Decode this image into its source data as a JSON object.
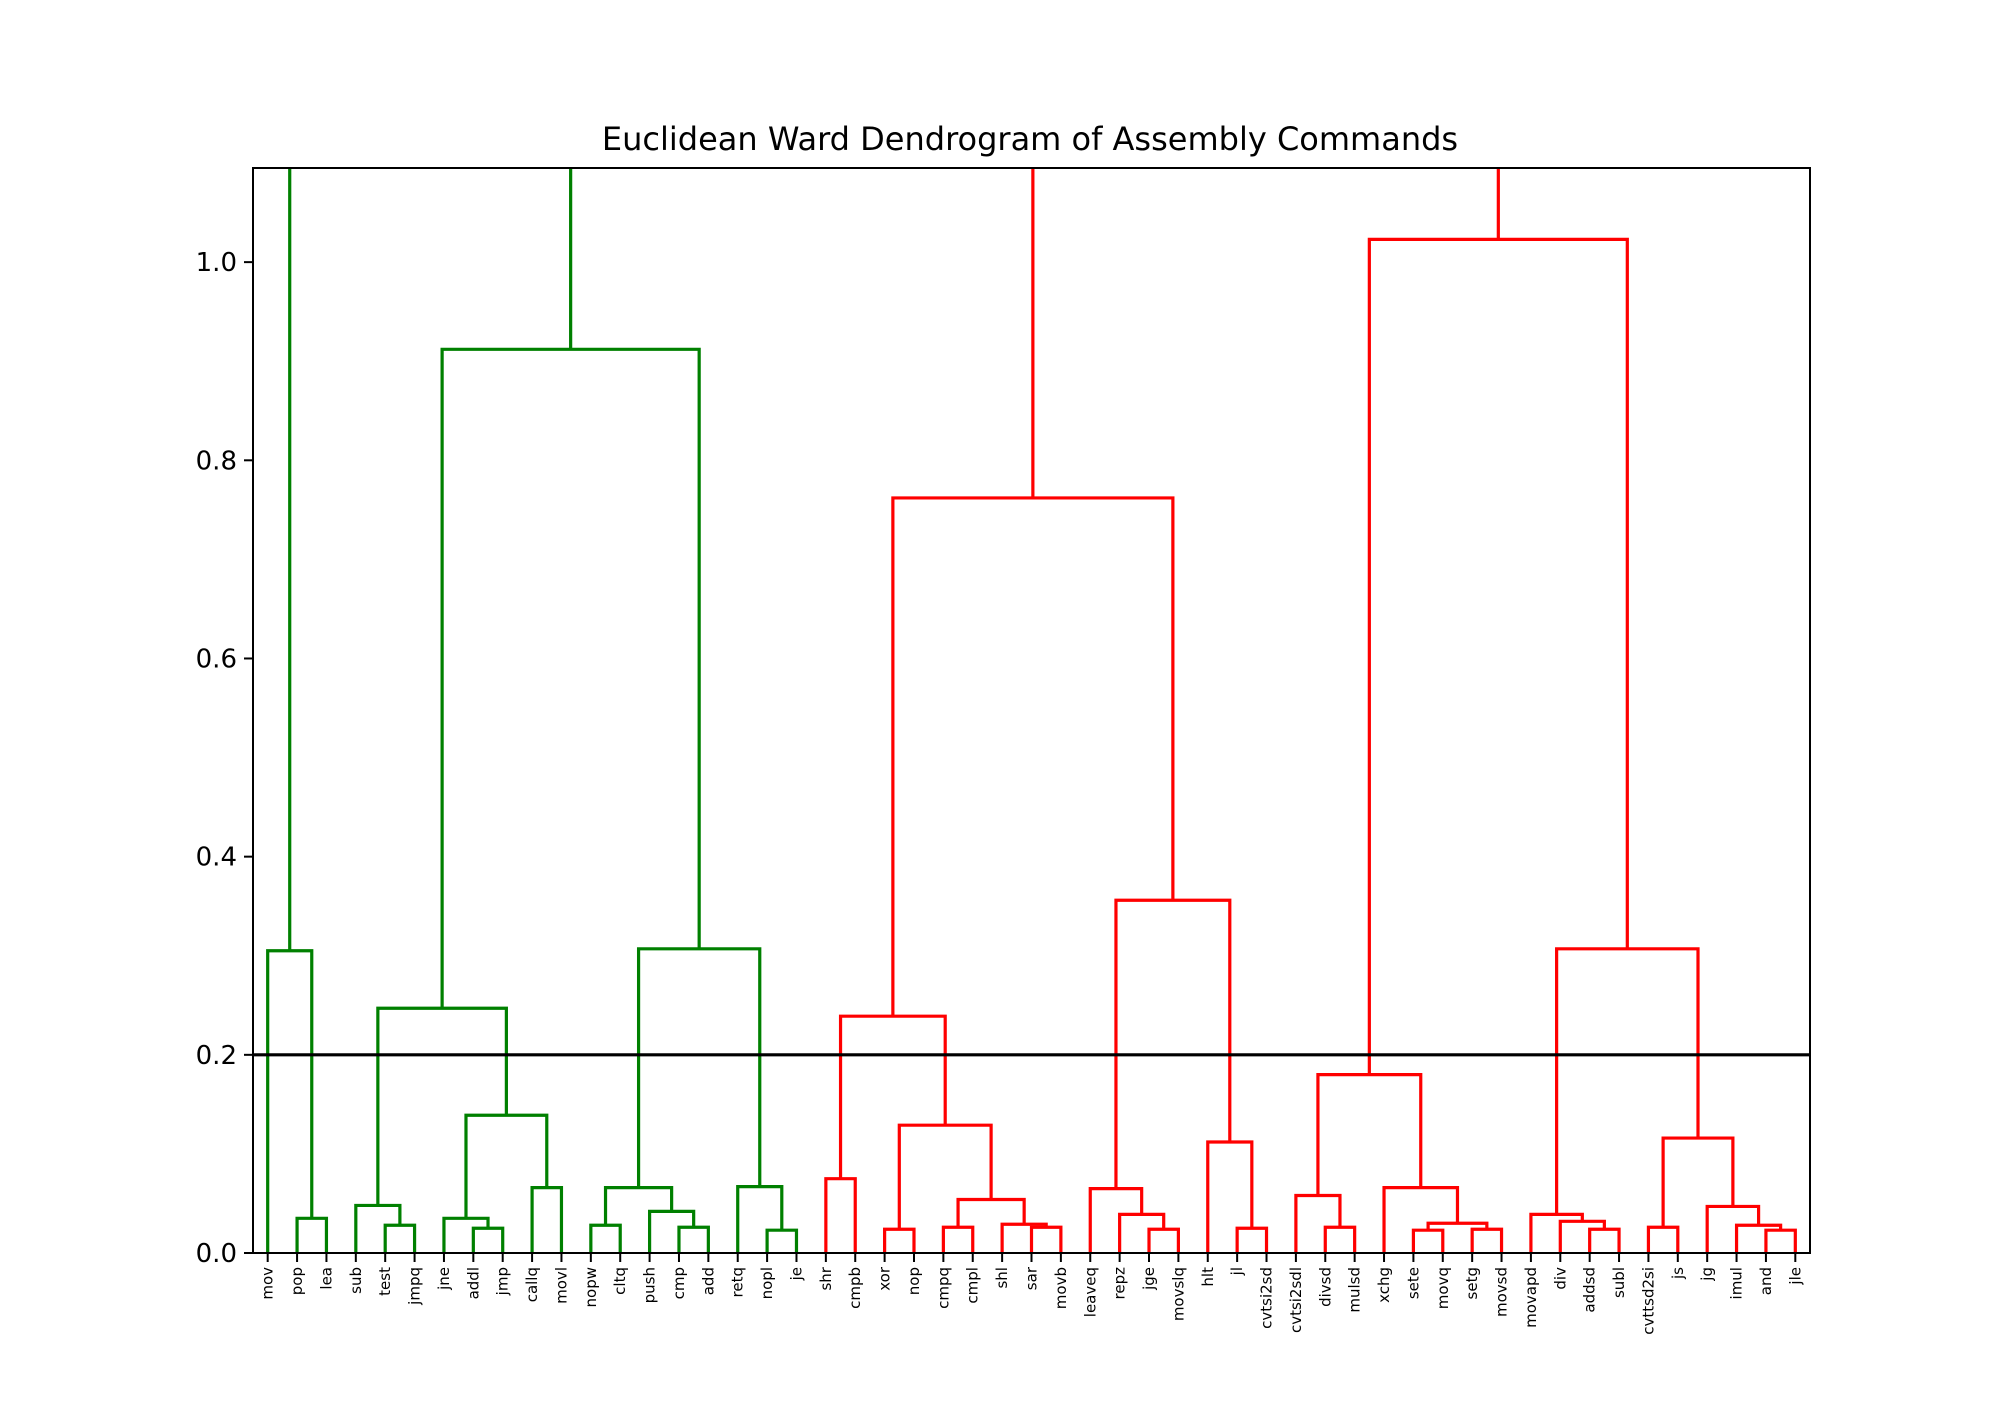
{
  "chart_data": {
    "type": "dendrogram",
    "title": "Euclidean Ward Dendrogram of Assembly Commands",
    "xlabel": "",
    "ylabel": "",
    "ylim": [
      0,
      1.095
    ],
    "yticks": [
      0.0,
      0.2,
      0.4,
      0.6,
      0.8,
      1.0
    ],
    "ytick_labels": [
      "0.0",
      "0.2",
      "0.4",
      "0.6",
      "0.8",
      "1.0"
    ],
    "grid": false,
    "threshold": 0.2,
    "colors": {
      "cluster_a": "#008000",
      "cluster_b": "#ff0000",
      "threshold": "#000000",
      "axes": "#000000"
    },
    "leaves": [
      "mov",
      "pop",
      "lea",
      "sub",
      "test",
      "jmpq",
      "jne",
      "addl",
      "jmp",
      "callq",
      "movl",
      "nopw",
      "cltq",
      "push",
      "cmp",
      "add",
      "retq",
      "nopl",
      "je",
      "shr",
      "cmpb",
      "xor",
      "nop",
      "cmpq",
      "cmpl",
      "shl",
      "sar",
      "movb",
      "leaveq",
      "repz",
      "jge",
      "movslq",
      "hlt",
      "jl",
      "cvtsi2sd",
      "cvtsi2sdl",
      "divsd",
      "mulsd",
      "xchg",
      "sete",
      "movq",
      "setg",
      "movsd",
      "movapd",
      "div",
      "addsd",
      "subl",
      "cvttsd2si",
      "js",
      "jg",
      "imul",
      "and",
      "jle"
    ],
    "links": [
      {
        "a": "pop",
        "b": "lea",
        "h": 0.035,
        "color": "cluster_a"
      },
      {
        "a": "mov",
        "b": 0,
        "h": 0.305,
        "color": "cluster_a"
      },
      {
        "a": "test",
        "b": "jmpq",
        "h": 0.028,
        "color": "cluster_a"
      },
      {
        "a": "sub",
        "b": 2,
        "h": 0.048,
        "color": "cluster_a"
      },
      {
        "a": "addl",
        "b": "jmp",
        "h": 0.025,
        "color": "cluster_a"
      },
      {
        "a": "jne",
        "b": 4,
        "h": 0.035,
        "color": "cluster_a"
      },
      {
        "a": "callq",
        "b": "movl",
        "h": 0.066,
        "color": "cluster_a"
      },
      {
        "a": 5,
        "b": 6,
        "h": 0.139,
        "color": "cluster_a"
      },
      {
        "a": 3,
        "b": 7,
        "h": 0.247,
        "color": "cluster_a"
      },
      {
        "a": "nopw",
        "b": "cltq",
        "h": 0.028,
        "color": "cluster_a"
      },
      {
        "a": "cmp",
        "b": "add",
        "h": 0.026,
        "color": "cluster_a"
      },
      {
        "a": "push",
        "b": 10,
        "h": 0.042,
        "color": "cluster_a"
      },
      {
        "a": 9,
        "b": 11,
        "h": 0.066,
        "color": "cluster_a"
      },
      {
        "a": "nopl",
        "b": "je",
        "h": 0.023,
        "color": "cluster_a"
      },
      {
        "a": "retq",
        "b": 13,
        "h": 0.067,
        "color": "cluster_a"
      },
      {
        "a": 12,
        "b": 14,
        "h": 0.307,
        "color": "cluster_a"
      },
      {
        "a": 8,
        "b": 15,
        "h": 0.912,
        "color": "cluster_a"
      },
      {
        "a": "shr",
        "b": "cmpb",
        "h": 0.075,
        "color": "cluster_b"
      },
      {
        "a": "xor",
        "b": "nop",
        "h": 0.024,
        "color": "cluster_b"
      },
      {
        "a": "cmpq",
        "b": "cmpl",
        "h": 0.026,
        "color": "cluster_b"
      },
      {
        "a": "sar",
        "b": "movb",
        "h": 0.026,
        "color": "cluster_b"
      },
      {
        "a": "shl",
        "b": 20,
        "h": 0.029,
        "color": "cluster_b"
      },
      {
        "a": 19,
        "b": 21,
        "h": 0.054,
        "color": "cluster_b"
      },
      {
        "a": 18,
        "b": 22,
        "h": 0.129,
        "color": "cluster_b"
      },
      {
        "a": 17,
        "b": 23,
        "h": 0.239,
        "color": "cluster_b"
      },
      {
        "a": "jge",
        "b": "movslq",
        "h": 0.024,
        "color": "cluster_b"
      },
      {
        "a": "repz",
        "b": 25,
        "h": 0.039,
        "color": "cluster_b"
      },
      {
        "a": "leaveq",
        "b": 26,
        "h": 0.065,
        "color": "cluster_b"
      },
      {
        "a": "jl",
        "b": "cvtsi2sd",
        "h": 0.025,
        "color": "cluster_b"
      },
      {
        "a": "hlt",
        "b": 28,
        "h": 0.112,
        "color": "cluster_b"
      },
      {
        "a": 27,
        "b": 29,
        "h": 0.356,
        "color": "cluster_b"
      },
      {
        "a": 24,
        "b": 30,
        "h": 0.762,
        "color": "cluster_b"
      },
      {
        "a": "divsd",
        "b": "mulsd",
        "h": 0.026,
        "color": "cluster_b"
      },
      {
        "a": "cvtsi2sdl",
        "b": 32,
        "h": 0.058,
        "color": "cluster_b"
      },
      {
        "a": "sete",
        "b": "movq",
        "h": 0.023,
        "color": "cluster_b"
      },
      {
        "a": "setg",
        "b": "movsd",
        "h": 0.024,
        "color": "cluster_b"
      },
      {
        "a": 34,
        "b": 35,
        "h": 0.03,
        "color": "cluster_b"
      },
      {
        "a": "xchg",
        "b": 36,
        "h": 0.066,
        "color": "cluster_b"
      },
      {
        "a": 33,
        "b": 37,
        "h": 0.18,
        "color": "cluster_b"
      },
      {
        "a": "addsd",
        "b": "subl",
        "h": 0.024,
        "color": "cluster_b"
      },
      {
        "a": "div",
        "b": 39,
        "h": 0.032,
        "color": "cluster_b"
      },
      {
        "a": "movapd",
        "b": 40,
        "h": 0.039,
        "color": "cluster_b"
      },
      {
        "a": "cvttsd2si",
        "b": "js",
        "h": 0.026,
        "color": "cluster_b"
      },
      {
        "a": "and",
        "b": "jle",
        "h": 0.023,
        "color": "cluster_b"
      },
      {
        "a": "imul",
        "b": 43,
        "h": 0.028,
        "color": "cluster_b"
      },
      {
        "a": "jg",
        "b": 44,
        "h": 0.047,
        "color": "cluster_b"
      },
      {
        "a": 42,
        "b": 45,
        "h": 0.116,
        "color": "cluster_b"
      },
      {
        "a": 41,
        "b": 46,
        "h": 0.307,
        "color": "cluster_b"
      },
      {
        "a": 38,
        "b": 47,
        "h": 1.023,
        "color": "cluster_b"
      }
    ],
    "open_tops": [
      {
        "node": 1,
        "color": "cluster_a"
      },
      {
        "node": 16,
        "color": "cluster_a"
      },
      {
        "node": 31,
        "color": "cluster_b"
      },
      {
        "node": 48,
        "color": "cluster_b"
      }
    ]
  }
}
